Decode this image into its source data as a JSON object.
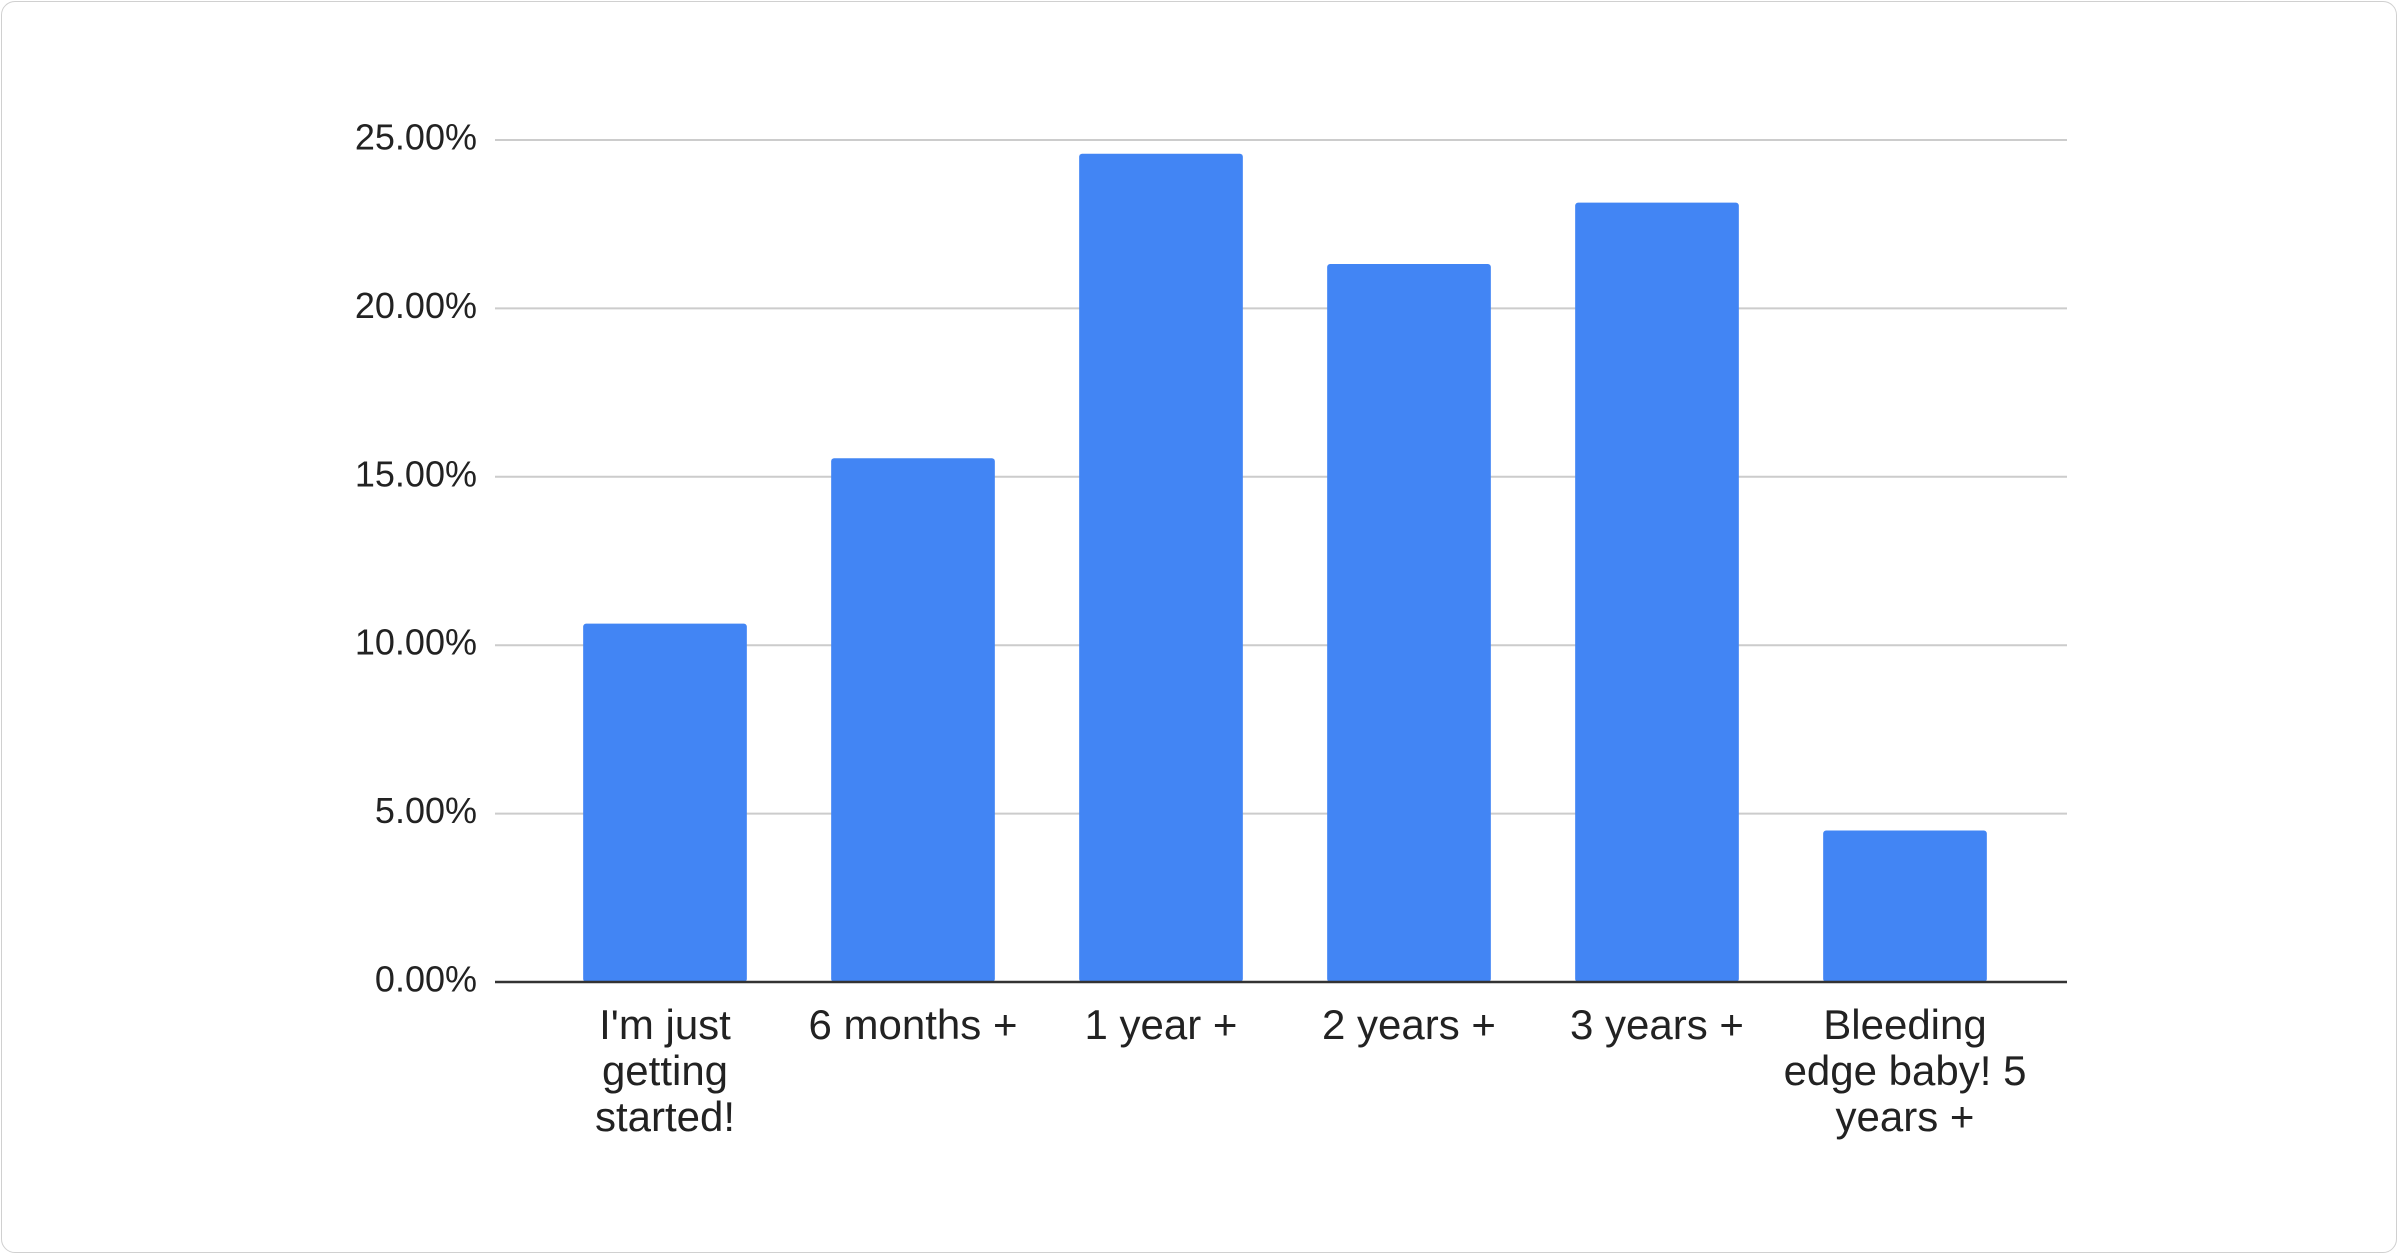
{
  "chart_data": {
    "type": "bar",
    "categories": [
      "I'm just getting started!",
      "6 months +",
      "1 year +",
      "2 years +",
      "3 years +",
      "Bleeding edge baby! 5 years +"
    ],
    "values": [
      10.64,
      15.55,
      24.59,
      21.32,
      23.14,
      4.5
    ],
    "color": "#4285f4",
    "ylim": [
      0,
      25
    ],
    "yticks": [
      {
        "value": 0,
        "label": "0.00%"
      },
      {
        "value": 5,
        "label": "5.00%"
      },
      {
        "value": 10,
        "label": "10.00%"
      },
      {
        "value": 15,
        "label": "15.00%"
      },
      {
        "value": 20,
        "label": "20.00%"
      },
      {
        "value": 25,
        "label": "25.00%"
      }
    ],
    "grid": true
  }
}
